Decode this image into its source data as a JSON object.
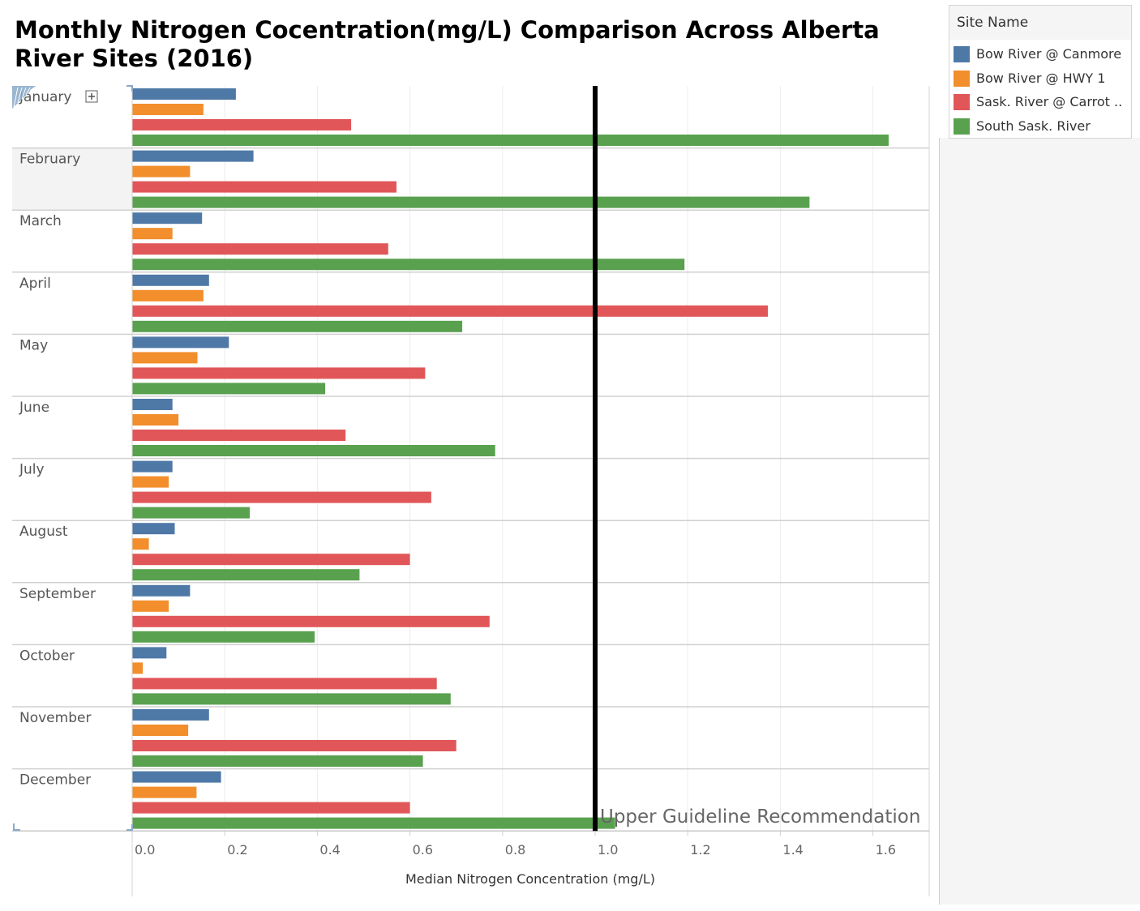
{
  "chart_data": {
    "type": "bar",
    "orientation": "horizontal",
    "title": "Monthly Nitrogen Cocentration(mg/L)  Comparison Across Alberta River Sites (2016)",
    "xlabel": "Median Nitrogen Concentration (mg/L)",
    "xlim": [
      0,
      1.72
    ],
    "xticks": [
      "0.0",
      "0.2",
      "0.4",
      "0.6",
      "0.8",
      "1.0",
      "1.2",
      "1.4",
      "1.6"
    ],
    "xtick_values": [
      0,
      0.2,
      0.4,
      0.6,
      0.8,
      1.0,
      1.2,
      1.4,
      1.6
    ],
    "grid": true,
    "legend_title": "Site Name",
    "legend_position": "right",
    "categories": [
      "January",
      "February",
      "March",
      "April",
      "May",
      "June",
      "July",
      "August",
      "September",
      "October",
      "November",
      "December"
    ],
    "series": [
      {
        "name": "Bow River @ Canmore",
        "color": "#4e79a7",
        "values": [
          0.224,
          0.262,
          0.151,
          0.166,
          0.209,
          0.087,
          0.087,
          0.092,
          0.125,
          0.074,
          0.166,
          0.192
        ]
      },
      {
        "name": "Bow River @ HWY 1",
        "color": "#f28e2b",
        "values": [
          0.154,
          0.125,
          0.087,
          0.154,
          0.141,
          0.1,
          0.079,
          0.036,
          0.079,
          0.023,
          0.121,
          0.139
        ]
      },
      {
        "name": "Sask. River @ Carrot ..",
        "color": "#e15759",
        "values": [
          0.473,
          0.571,
          0.553,
          1.373,
          0.633,
          0.461,
          0.646,
          0.6,
          0.772,
          0.658,
          0.7,
          0.6
        ]
      },
      {
        "name": "South Sask. River",
        "color": "#59a14f",
        "values": [
          1.634,
          1.463,
          1.193,
          0.713,
          0.417,
          0.784,
          0.254,
          0.491,
          0.394,
          0.688,
          0.628,
          1.043
        ]
      }
    ],
    "reference_line": {
      "value": 1.0,
      "label": "Upper Guideline Recommendation",
      "color": "#000000"
    },
    "selected_category": "February"
  }
}
